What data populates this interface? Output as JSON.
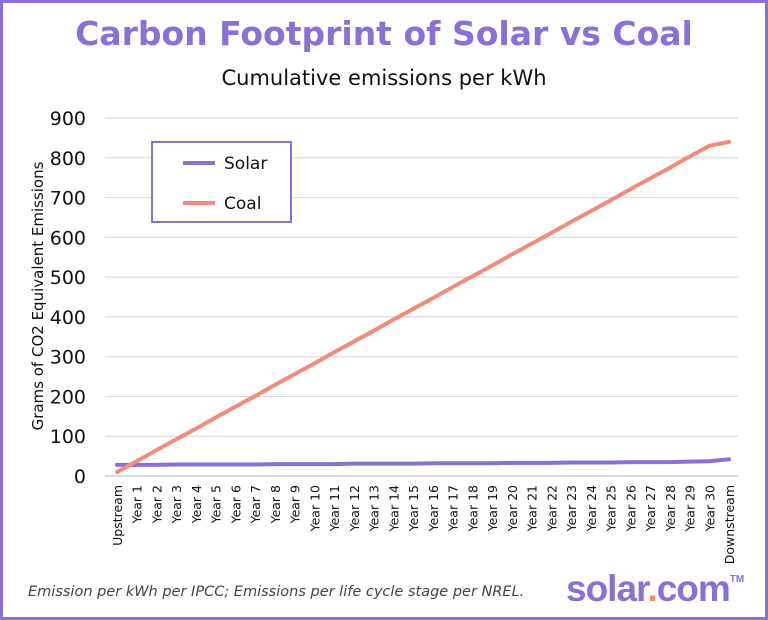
{
  "chart_data": {
    "type": "line",
    "title": "Carbon Footprint of Solar vs Coal",
    "subtitle": "Cumulative emissions per kWh",
    "ylabel": "Grams of CO2 Equivalent Emissions",
    "xlabel": "",
    "ylim": [
      0,
      900
    ],
    "yticks": [
      0,
      100,
      200,
      300,
      400,
      500,
      600,
      700,
      800,
      900
    ],
    "grid": true,
    "legend_position": "top-left",
    "categories": [
      "Upstream",
      "Year 1",
      "Year 2",
      "Year 3",
      "Year 4",
      "Year 5",
      "Year 6",
      "Year 7",
      "Year 8",
      "Year 9",
      "Year 10",
      "Year 11",
      "Year 12",
      "Year 13",
      "Year 14",
      "Year 15",
      "Year 16",
      "Year 17",
      "Year 18",
      "Year 19",
      "Year 20",
      "Year 21",
      "Year 22",
      "Year 23",
      "Year 24",
      "Year 25",
      "Year 26",
      "Year 27",
      "Year 28",
      "Year 29",
      "Year 30",
      "Downstream"
    ],
    "series": [
      {
        "name": "Solar",
        "color": "#8a6fd6",
        "values": [
          28,
          28,
          28,
          29,
          29,
          29,
          29,
          29,
          30,
          30,
          30,
          30,
          31,
          31,
          31,
          31,
          32,
          32,
          32,
          32,
          33,
          33,
          33,
          34,
          34,
          34,
          35,
          35,
          35,
          36,
          37,
          42
        ]
      },
      {
        "name": "Coal",
        "color": "#f28c7a",
        "values": [
          10,
          37,
          65,
          92,
          119,
          147,
          174,
          201,
          229,
          256,
          283,
          311,
          338,
          365,
          393,
          420,
          447,
          475,
          502,
          529,
          557,
          584,
          611,
          639,
          666,
          693,
          721,
          748,
          775,
          803,
          830,
          840
        ]
      }
    ]
  },
  "footer": "Emission per kWh per IPCC; Emissions per life cycle stage per NREL.",
  "logo": {
    "text_a": "solar",
    "dot": ".",
    "text_b": "com",
    "tm": "TM"
  },
  "colors": {
    "accent": "#8a6fd6",
    "coal": "#f28c7a"
  }
}
